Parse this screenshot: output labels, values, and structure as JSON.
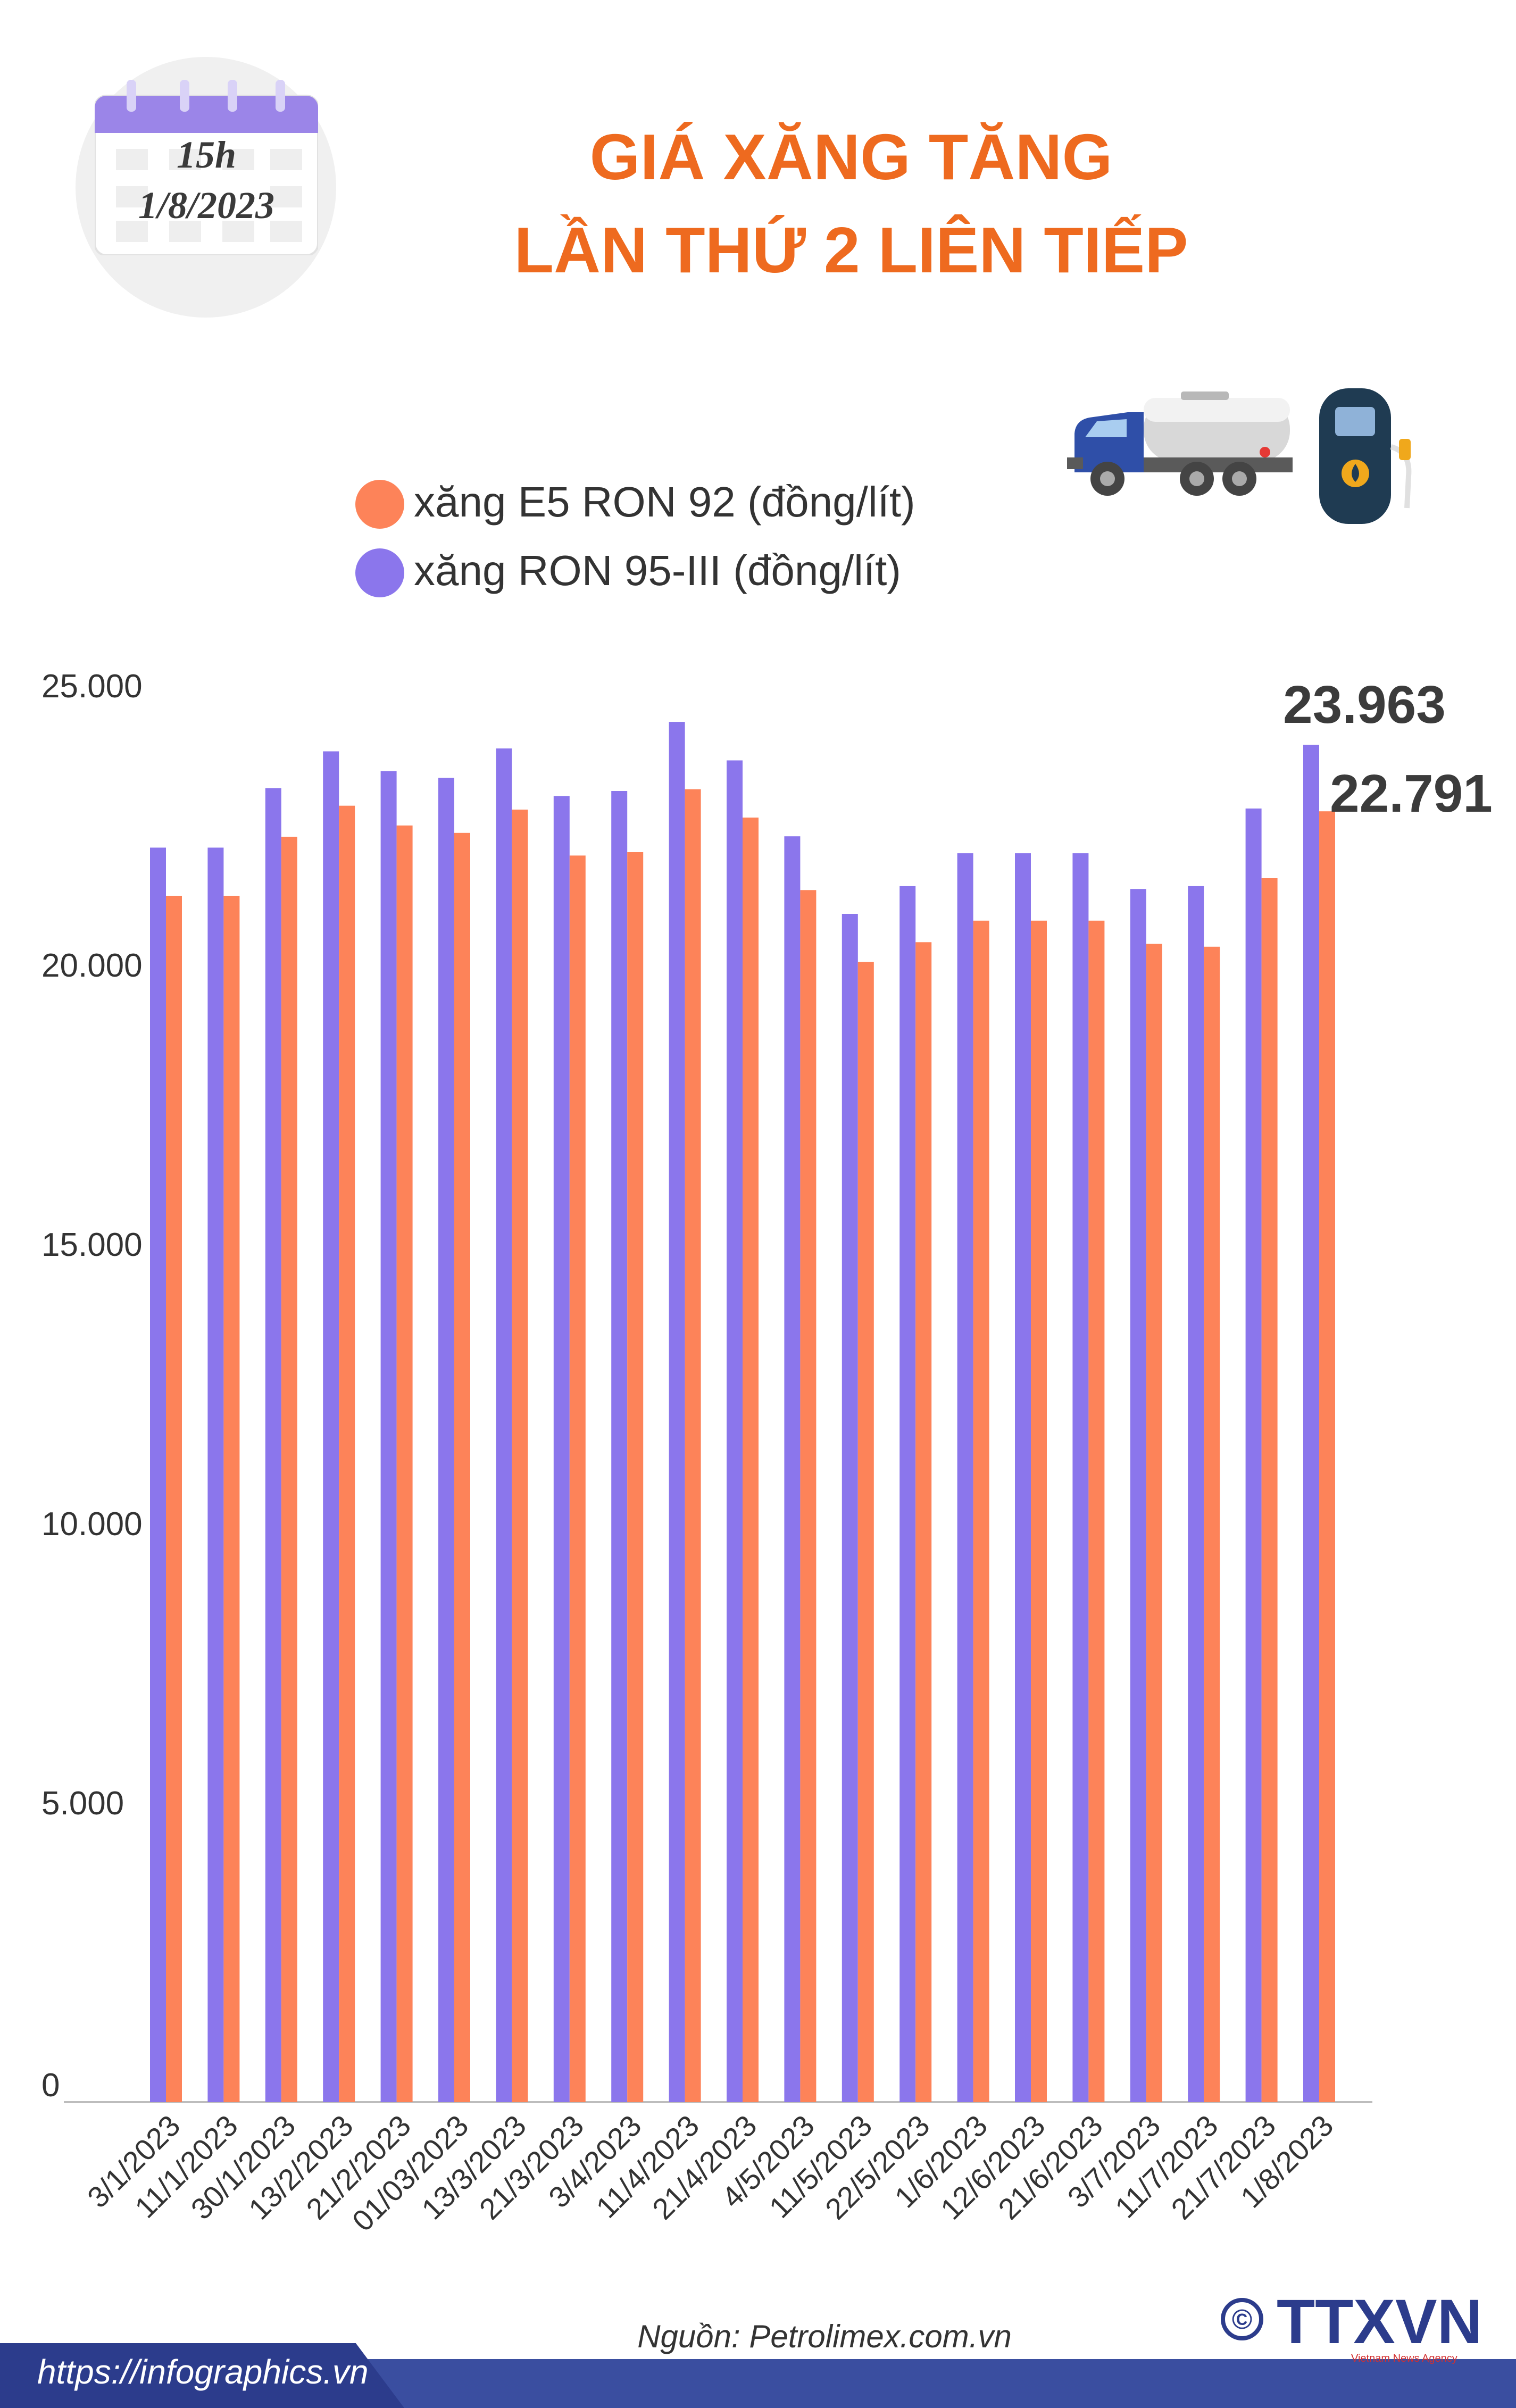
{
  "header": {
    "calendar_time": "15h",
    "calendar_date": "1/8/2023",
    "title_line1": "GIÁ XĂNG TĂNG",
    "title_line2": "LẦN THỨ 2 LIÊN TIẾP"
  },
  "colors": {
    "accent": "#ee6a1f",
    "e5": "#fd8359",
    "ron95": "#8b76ec",
    "calendar": "#9b85e8",
    "footer": "#3a4ea0"
  },
  "callouts": {
    "ron95_last": "23.963",
    "e5_last": "22.791"
  },
  "chart_data": {
    "type": "bar",
    "categories": [
      "3/1/2023",
      "11/1/2023",
      "30/1/2023",
      "13/2/2023",
      "21/2/2023",
      "01/03/2023",
      "13/3/2023",
      "21/3/2023",
      "3/4/2023",
      "11/4/2023",
      "21/4/2023",
      "4/5/2023",
      "11/5/2023",
      "22/5/2023",
      "1/6/2023",
      "12/6/2023",
      "21/6/2023",
      "3/7/2023",
      "11/7/2023",
      "21/7/2023",
      "1/8/2023"
    ],
    "series": [
      {
        "name": "xăng RON 95-III (đồng/lít)",
        "color": "#8b76ec",
        "values": [
          22150,
          22150,
          23200,
          23850,
          23500,
          23380,
          23900,
          23060,
          23150,
          24370,
          23690,
          22350,
          20980,
          21470,
          22050,
          22050,
          22050,
          21420,
          21470,
          22840,
          23963
        ]
      },
      {
        "name": "xăng E5 RON 92 (đồng/lít)",
        "color": "#fd8359",
        "values": [
          21300,
          21300,
          22340,
          22890,
          22540,
          22410,
          22820,
          22010,
          22070,
          23180,
          22680,
          21400,
          20130,
          20480,
          20860,
          20860,
          20860,
          20450,
          20400,
          21610,
          22791
        ]
      }
    ],
    "legend_order": [
      "xăng E5 RON 92 (đồng/lít)",
      "xăng RON 95-III (đồng/lít)"
    ],
    "yticks": [
      0,
      5000,
      10000,
      15000,
      20000,
      25000
    ],
    "ytick_labels": [
      "0",
      "5.000",
      "10.000",
      "15.000",
      "20.000",
      "25.000"
    ],
    "ylim": [
      0,
      25000
    ],
    "grid": false,
    "legend_position": "top-left"
  },
  "source": "Nguồn: Petrolimex.com.vn",
  "footer": {
    "url": "https://infographics.vn",
    "logo_text": "TTXVN",
    "logo_sub": "Vietnam News Agency",
    "copyright": "©"
  }
}
